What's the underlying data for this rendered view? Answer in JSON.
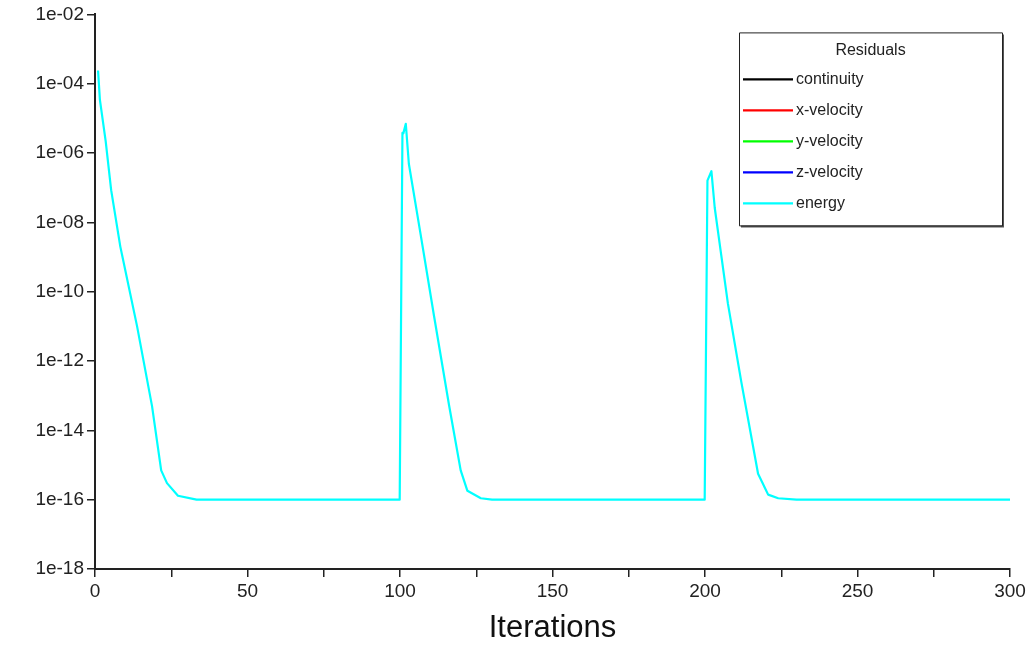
{
  "chart_data": {
    "type": "line",
    "xlabel": "Iterations",
    "legend_title": "Residuals",
    "legend": "top right",
    "log": "y",
    "grid": false,
    "marker": "none",
    "line_style": "solid",
    "xlim": [
      0,
      300
    ],
    "xticks": [
      0,
      {
        "value": 25,
        "label": null
      },
      50,
      {
        "value": 75,
        "label": null
      },
      100,
      {
        "value": 125,
        "label": null
      },
      150,
      {
        "value": 175,
        "label": null
      },
      200,
      {
        "value": 225,
        "label": null
      },
      250,
      {
        "value": 275,
        "label": null
      },
      300
    ],
    "ylim": [
      1e-18,
      0.01
    ],
    "yticks": [
      {
        "value": 1e-18,
        "label": "1e-18"
      },
      {
        "value": 1e-16,
        "label": "1e-16"
      },
      {
        "value": 1e-14,
        "label": "1e-14"
      },
      {
        "value": 1e-12,
        "label": "1e-12"
      },
      {
        "value": 1e-10,
        "label": "1e-10"
      },
      {
        "value": 1e-08,
        "label": "1e-08"
      },
      {
        "value": 1e-06,
        "label": "1e-06"
      },
      {
        "value": 0.0001,
        "label": "1e-04"
      },
      {
        "value": 0.01,
        "label": "1e-02"
      }
    ],
    "x": [
      1,
      1.6,
      3.5,
      5.3,
      8.3,
      13.8,
      18.7,
      21.7,
      23.6,
      27.2,
      33.3,
      99.9,
      100.8,
      101.1,
      101.9,
      102.9,
      106.8,
      111.2,
      116.1,
      119.9,
      122.1,
      126.5,
      130.2,
      199.9,
      200.8,
      202.1,
      203.2,
      207.5,
      211.9,
      217.4,
      220.7,
      224,
      230,
      300
    ],
    "series": [
      {
        "name": "continuity",
        "color": "#000000",
        "values": [
          null,
          null,
          null,
          null,
          null,
          null,
          null,
          null,
          null,
          null,
          null,
          null,
          null,
          null,
          null,
          null,
          null,
          null,
          null,
          null,
          null,
          null,
          null,
          null,
          null,
          null,
          null,
          null,
          null,
          null,
          null,
          null,
          null,
          null
        ]
      },
      {
        "name": "x-velocity",
        "color": "#ff0000",
        "values": [
          null,
          null,
          null,
          null,
          null,
          null,
          null,
          null,
          null,
          null,
          null,
          null,
          null,
          null,
          null,
          null,
          null,
          null,
          null,
          null,
          null,
          null,
          null,
          null,
          null,
          null,
          null,
          null,
          null,
          null,
          null,
          null,
          null,
          null
        ]
      },
      {
        "name": "y-velocity",
        "color": "#00ff00",
        "values": [
          null,
          null,
          null,
          null,
          null,
          null,
          null,
          null,
          null,
          null,
          null,
          null,
          null,
          null,
          null,
          null,
          null,
          null,
          null,
          null,
          null,
          null,
          null,
          null,
          null,
          null,
          null,
          null,
          null,
          null,
          null,
          null,
          null,
          null
        ]
      },
      {
        "name": "z-velocity",
        "color": "#0000ff",
        "values": [
          null,
          null,
          null,
          null,
          null,
          null,
          null,
          null,
          null,
          null,
          null,
          null,
          null,
          null,
          null,
          null,
          null,
          null,
          null,
          null,
          null,
          null,
          null,
          null,
          null,
          null,
          null,
          null,
          null,
          null,
          null,
          null,
          null,
          null
        ]
      },
      {
        "name": "energy",
        "color": "#00ffff",
        "values": [
          0.00024,
          3.5e-05,
          2.2e-06,
          8.5e-08,
          2e-09,
          1e-11,
          5e-14,
          7e-16,
          3e-16,
          1.3e-16,
          1e-16,
          1e-16,
          3.8e-06,
          3.7e-06,
          7e-06,
          4.9e-07,
          4.3e-09,
          1.9e-11,
          5.2e-14,
          7e-16,
          1.8e-16,
          1.1e-16,
          1e-16,
          1e-16,
          1.6e-07,
          3e-07,
          2.6e-08,
          4.6e-11,
          2.5e-13,
          5.6e-16,
          1.4e-16,
          1.1e-16,
          1e-16,
          1e-16
        ]
      }
    ]
  }
}
